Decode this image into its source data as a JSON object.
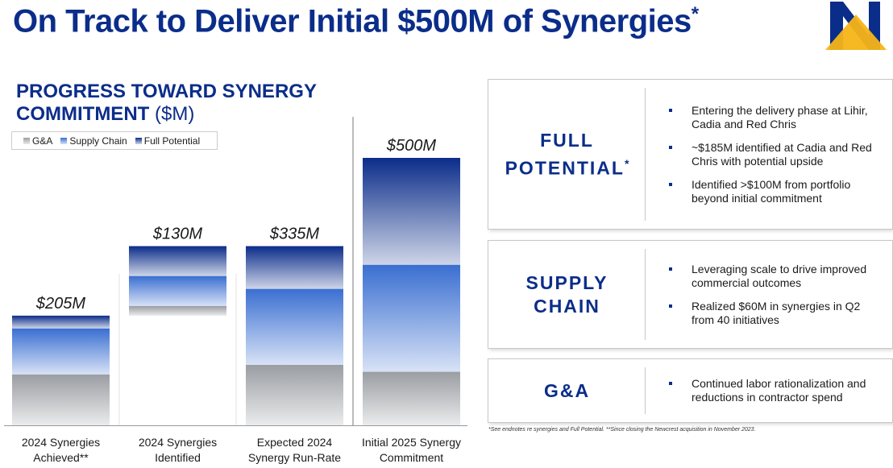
{
  "title": "On Track to Deliver Initial $500M of Synergies",
  "title_mark": "*",
  "chart_data": {
    "type": "waterfall",
    "title": "PROGRESS TOWARD SYNERGY COMMITMENT",
    "title_unit": "($M)",
    "categories": [
      "2024 Synergies Achieved**",
      "2024 Synergies Identified",
      "Expected 2024 Synergy Run-Rate",
      "Initial 2025 Synergy Commitment"
    ],
    "bar_kinds": [
      "total",
      "increment",
      "total",
      "total"
    ],
    "series": [
      {
        "name": "G&A",
        "color": "#9a9da2",
        "values": [
          95,
          18,
          113,
          100
        ]
      },
      {
        "name": "Supply Chain",
        "color": "#3a6fd1",
        "values": [
          86,
          56,
          142,
          200
        ]
      },
      {
        "name": "Full Potential",
        "color": "#0b2d8a",
        "values": [
          24,
          56,
          80,
          200
        ]
      }
    ],
    "totals": [
      205,
      130,
      335,
      500
    ],
    "total_labels": [
      "$205M",
      "$130M",
      "$335M",
      "$500M"
    ],
    "ylim": [
      0,
      500
    ],
    "legend": "top-left"
  },
  "panels": [
    {
      "heading": "FULL POTENTIAL",
      "heading_mark": "*",
      "bullets": [
        "Entering the delivery phase at Lihir, Cadia and Red Chris",
        "~$185M identified at Cadia and Red Chris with potential upside",
        "Identified >$100M from portfolio beyond initial commitment"
      ]
    },
    {
      "heading": "SUPPLY CHAIN",
      "bullets": [
        "Leveraging scale to drive improved commercial outcomes",
        "Realized $60M in synergies in Q2 from 40 initiatives"
      ]
    },
    {
      "heading": "G&A",
      "bullets": [
        "Continued labor rationalization and reductions in contractor spend"
      ]
    }
  ],
  "footnote": "*See endnotes re synergies and Full Potential. **Since closing the Newcrest acquisition in November 2023."
}
